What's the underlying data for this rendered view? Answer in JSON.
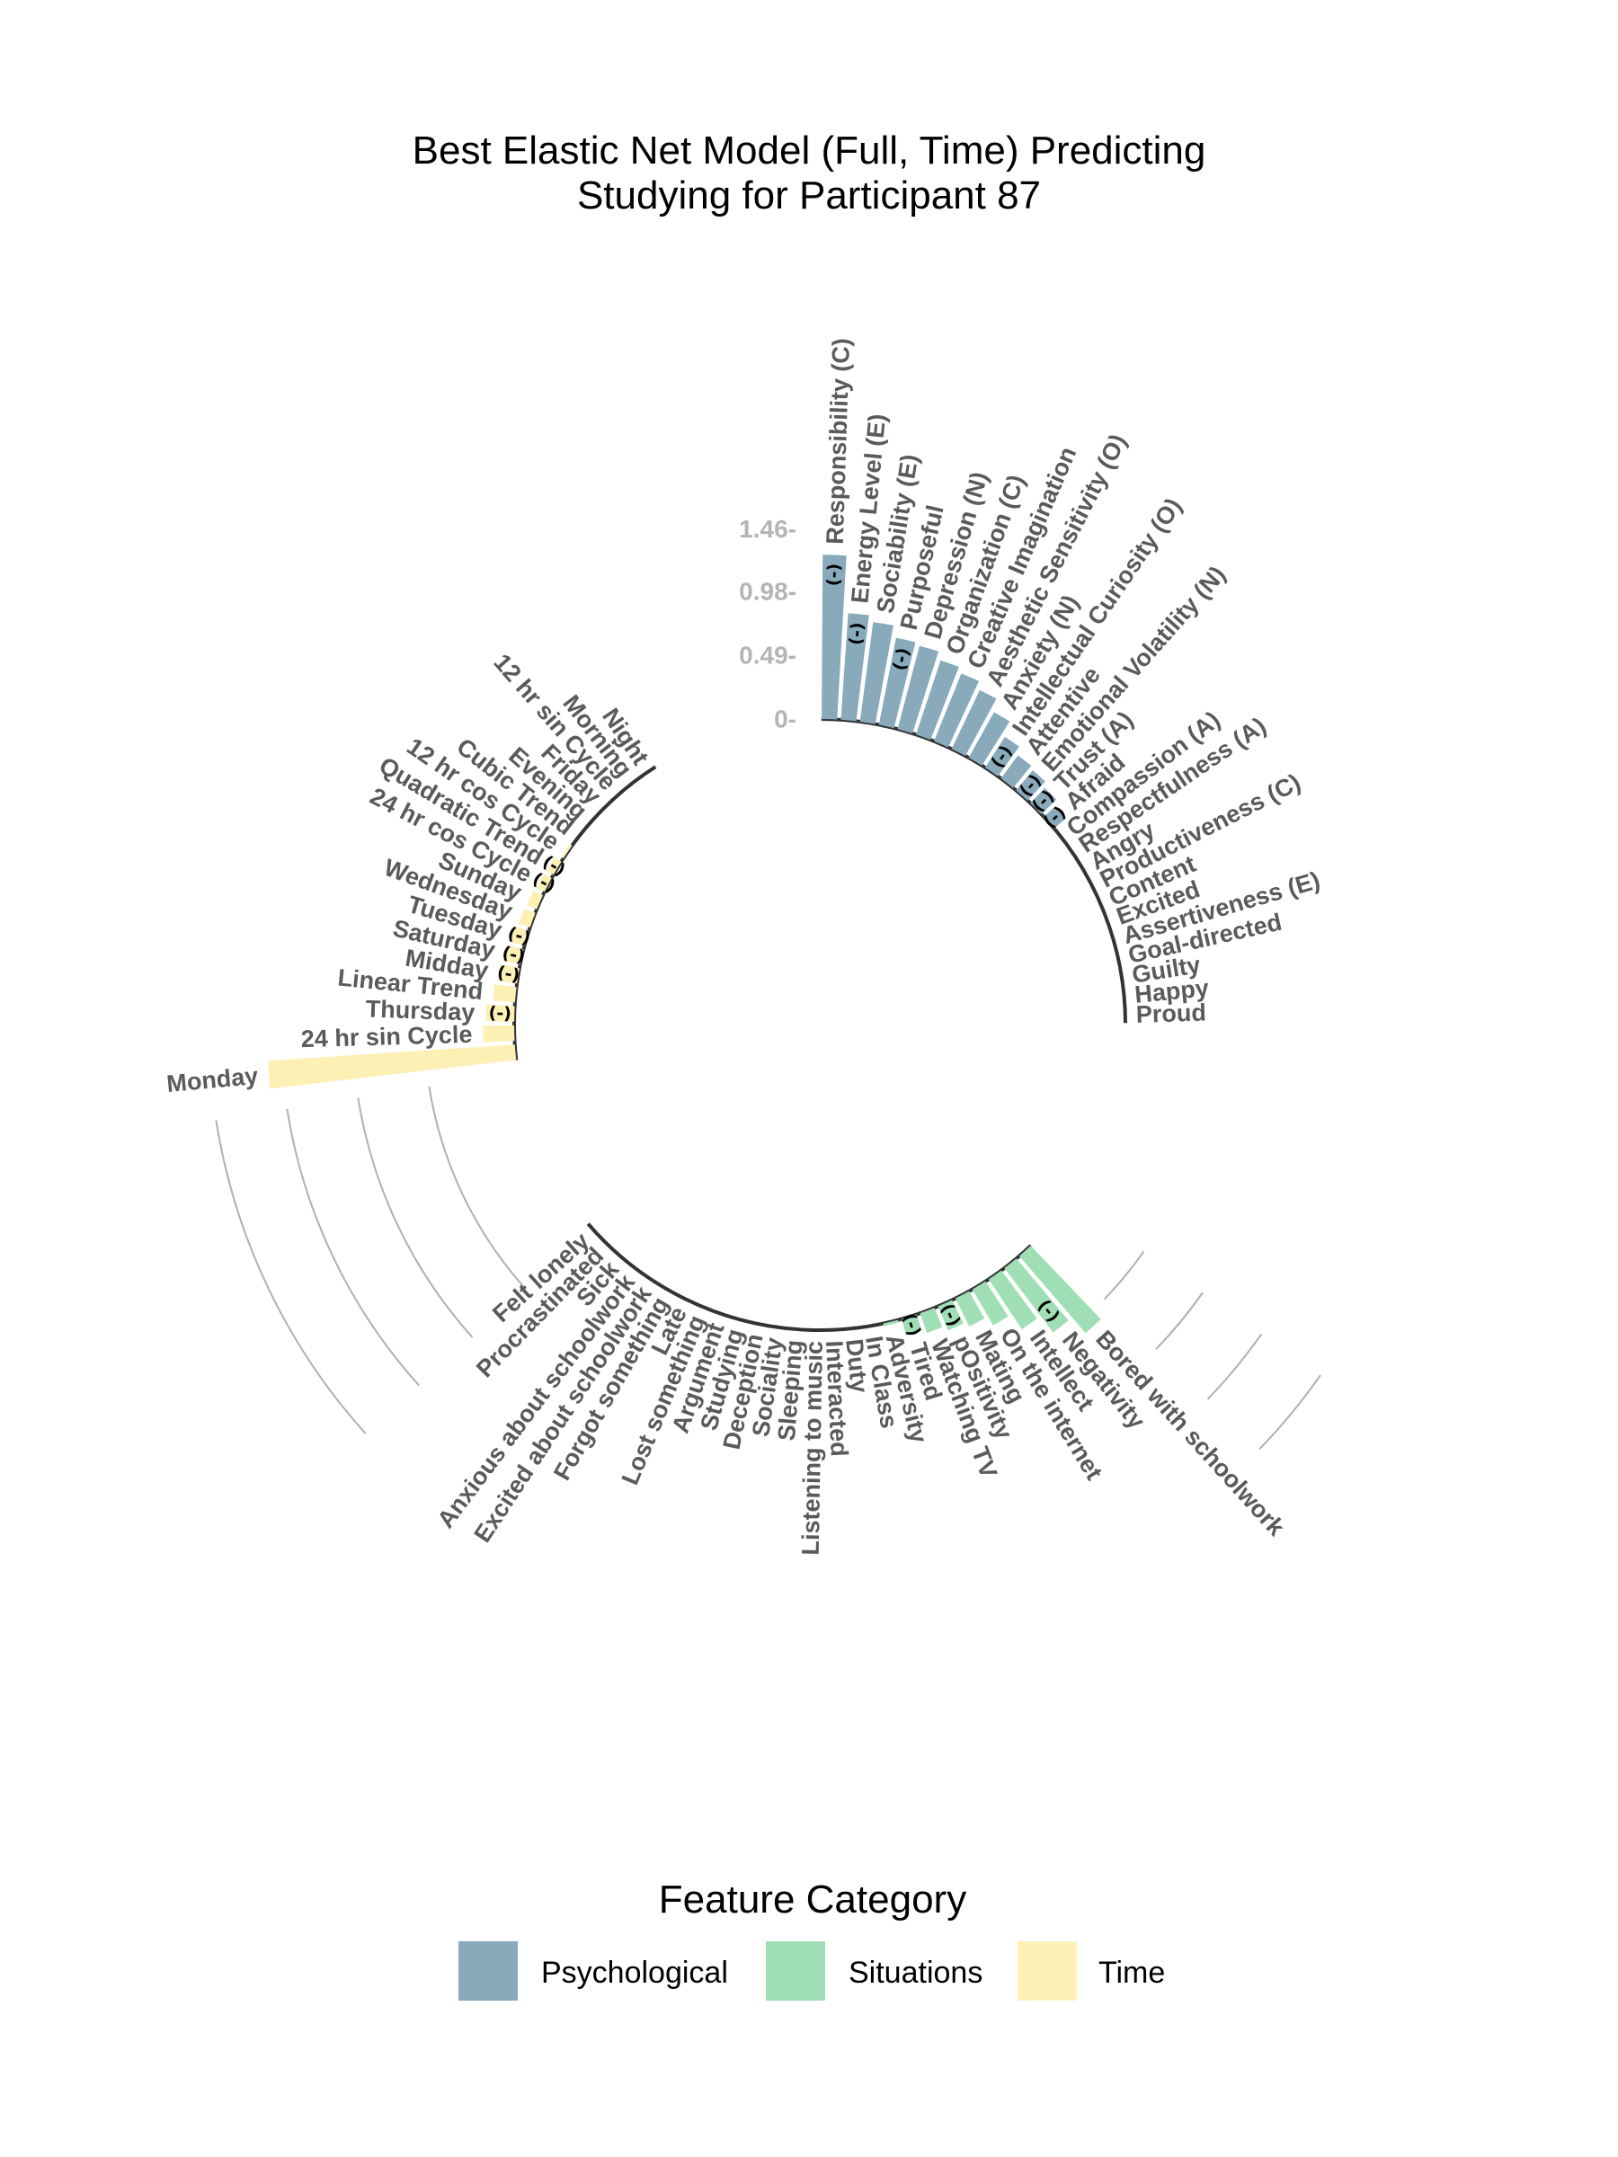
{
  "chart_data": {
    "type": "bar",
    "polar": true,
    "title_line1": "Best Elastic Net Model (Full, Time) Predicting",
    "title_line2": "Studying for Participant 87",
    "yticks": [
      "0-",
      "0.49-",
      "0.98-",
      "1.46-"
    ],
    "ytick_values": [
      0,
      0.49,
      0.98,
      1.46
    ],
    "ylim": [
      0,
      1.46
    ],
    "negative_marker": "(-)",
    "colors": {
      "Psychological": "#88aabb",
      "Situations": "#a0dfb5",
      "Time": "#fdf0b5"
    },
    "legend": {
      "title": "Feature Category",
      "items": [
        {
          "label": "Psychological",
          "color": "#88aabb"
        },
        {
          "label": "Situations",
          "color": "#a0dfb5"
        },
        {
          "label": "Time",
          "color": "#fdf0b5"
        }
      ]
    },
    "psychological": [
      {
        "label": "Responsibility (C)",
        "value": 1.26,
        "neg": true
      },
      {
        "label": "Energy Level (E)",
        "value": 0.82,
        "neg": true
      },
      {
        "label": "Sociability (E)",
        "value": 0.77,
        "neg": false
      },
      {
        "label": "Purposeful",
        "value": 0.68,
        "neg": true
      },
      {
        "label": "Depression (N)",
        "value": 0.66,
        "neg": false
      },
      {
        "label": "Organization (C)",
        "value": 0.6,
        "neg": false
      },
      {
        "label": "Creative Imagination",
        "value": 0.56,
        "neg": false
      },
      {
        "label": "Aesthetic Sensitivity (O)",
        "value": 0.5,
        "neg": false
      },
      {
        "label": "Anxiety (N)",
        "value": 0.4,
        "neg": false
      },
      {
        "label": "Intellectual Curiosity (O)",
        "value": 0.28,
        "neg": true
      },
      {
        "label": "Attentive",
        "value": 0.22,
        "neg": false
      },
      {
        "label": "Emotional Volatility (N)",
        "value": 0.2,
        "neg": true
      },
      {
        "label": "Trust (A)",
        "value": 0.16,
        "neg": true
      },
      {
        "label": "Afraid",
        "value": 0.12,
        "neg": true
      },
      {
        "label": "Compassion (A)",
        "value": 0,
        "neg": false
      },
      {
        "label": "Respectfulness (A)",
        "value": 0,
        "neg": false
      },
      {
        "label": "Angry",
        "value": 0,
        "neg": false
      },
      {
        "label": "Productiveness (C)",
        "value": 0,
        "neg": false
      },
      {
        "label": "Content",
        "value": 0,
        "neg": false
      },
      {
        "label": "Excited",
        "value": 0,
        "neg": false
      },
      {
        "label": "Assertiveness (E)",
        "value": 0,
        "neg": false
      },
      {
        "label": "Goal-directed",
        "value": 0,
        "neg": false
      },
      {
        "label": "Guilty",
        "value": 0,
        "neg": false
      },
      {
        "label": "Happy",
        "value": 0,
        "neg": false
      },
      {
        "label": "Proud",
        "value": 0,
        "neg": false
      }
    ],
    "situations": [
      {
        "label": "Bored with schoolwork",
        "value": 0.78,
        "neg": false
      },
      {
        "label": "Negativity",
        "value": 0.62,
        "neg": true
      },
      {
        "label": "Intellect",
        "value": 0.46,
        "neg": false
      },
      {
        "label": "On the internet",
        "value": 0.32,
        "neg": false
      },
      {
        "label": "Mating",
        "value": 0.24,
        "neg": false
      },
      {
        "label": "pOsitivity",
        "value": 0.2,
        "neg": true
      },
      {
        "label": "Watching TV",
        "value": 0.16,
        "neg": false
      },
      {
        "label": "Tired",
        "value": 0.13,
        "neg": true
      },
      {
        "label": "Adversity",
        "value": 0.02,
        "neg": false
      },
      {
        "label": "In Class",
        "value": 0,
        "neg": false
      },
      {
        "label": "Duty",
        "value": 0,
        "neg": false
      },
      {
        "label": "Interacted",
        "value": 0,
        "neg": false
      },
      {
        "label": "Listening to music",
        "value": 0,
        "neg": false
      },
      {
        "label": "Sleeping",
        "value": 0,
        "neg": false
      },
      {
        "label": "Sociality",
        "value": 0,
        "neg": false
      },
      {
        "label": "Deception",
        "value": 0,
        "neg": false
      },
      {
        "label": "Studying",
        "value": 0,
        "neg": false
      },
      {
        "label": "Argument",
        "value": 0,
        "neg": false
      },
      {
        "label": "Lost something",
        "value": 0,
        "neg": false
      },
      {
        "label": "Late",
        "value": 0,
        "neg": false
      },
      {
        "label": "Forgot something",
        "value": 0,
        "neg": false
      },
      {
        "label": "Excited about schoolwork",
        "value": 0,
        "neg": false
      },
      {
        "label": "Anxious about schoolwork",
        "value": 0,
        "neg": false
      },
      {
        "label": "Sick",
        "value": 0,
        "neg": false
      },
      {
        "label": "Procrastinated",
        "value": 0,
        "neg": false
      },
      {
        "label": "Felt lonely",
        "value": 0,
        "neg": false
      }
    ],
    "time": [
      {
        "label": "Monday",
        "value": 1.9,
        "neg": false
      },
      {
        "label": "24 hr sin Cycle",
        "value": 0.24,
        "neg": false
      },
      {
        "label": "Thursday",
        "value": 0.22,
        "neg": true
      },
      {
        "label": "Linear Trend",
        "value": 0.17,
        "neg": false
      },
      {
        "label": "Midday",
        "value": 0.15,
        "neg": true
      },
      {
        "label": "Saturday",
        "value": 0.13,
        "neg": true
      },
      {
        "label": "Tuesday",
        "value": 0.12,
        "neg": true
      },
      {
        "label": "Wednesday",
        "value": 0.09,
        "neg": false
      },
      {
        "label": "Sunday",
        "value": 0.08,
        "neg": false
      },
      {
        "label": "24 hr cos Cycle",
        "value": 0.07,
        "neg": true
      },
      {
        "label": "Quadratic Trend",
        "value": 0.06,
        "neg": true
      },
      {
        "label": "12 hr cos Cycle",
        "value": 0.02,
        "neg": false
      },
      {
        "label": "Cubic Trend",
        "value": 0,
        "neg": false
      },
      {
        "label": "Evening",
        "value": 0,
        "neg": false
      },
      {
        "label": "Friday",
        "value": 0,
        "neg": false
      },
      {
        "label": "12 hr sin Cycle",
        "value": 0,
        "neg": false
      },
      {
        "label": "Morning",
        "value": 0,
        "neg": false
      },
      {
        "label": "Night",
        "value": 0,
        "neg": false
      }
    ]
  }
}
